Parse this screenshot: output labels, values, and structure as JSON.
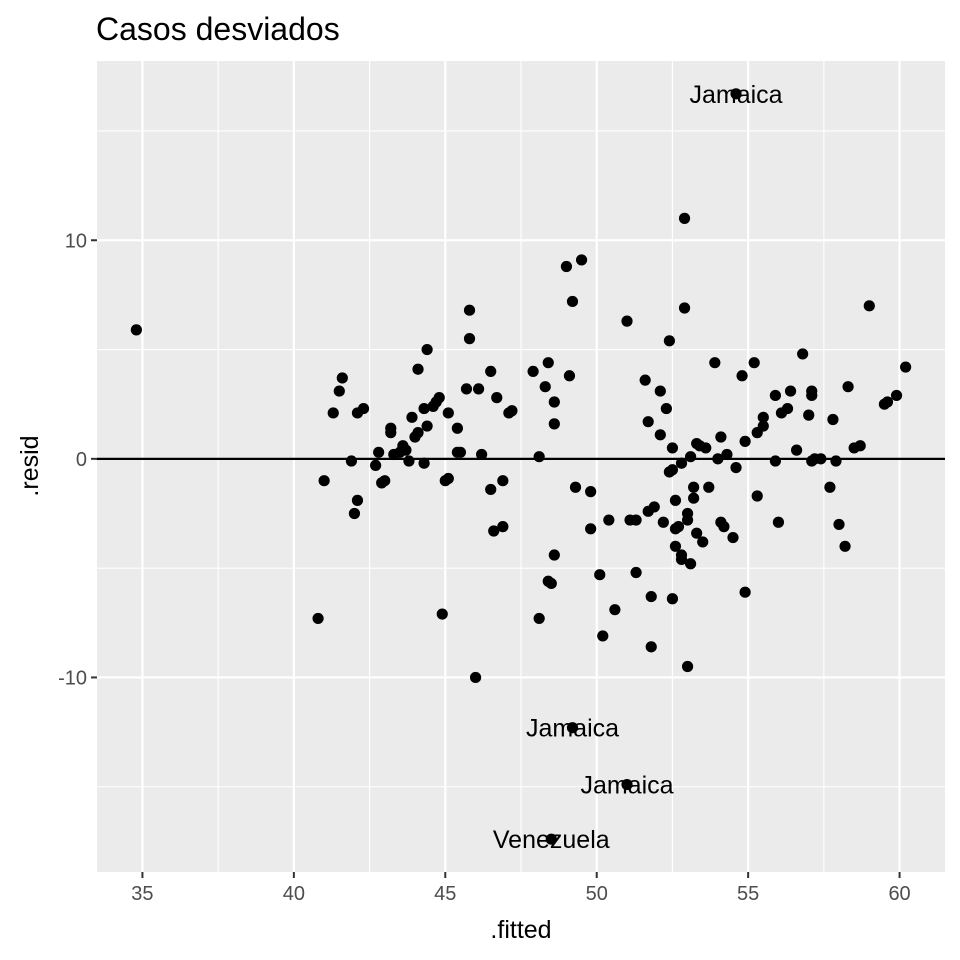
{
  "chart_data": {
    "type": "scatter",
    "title": "Casos desviados",
    "xlabel": ".fitted",
    "ylabel": ".resid",
    "xlim": [
      33.5,
      61.5
    ],
    "ylim": [
      -18.9,
      18.2
    ],
    "xticks": [
      35,
      40,
      45,
      50,
      55,
      60
    ],
    "yticks": [
      -10,
      0,
      10
    ],
    "xtick_labels": [
      "35",
      "40",
      "45",
      "50",
      "55",
      "60"
    ],
    "ytick_labels": [
      "-10",
      "0",
      "10"
    ],
    "grid": true,
    "reference_line": 0,
    "points": [
      [
        34.8,
        5.9
      ],
      [
        40.8,
        -7.3
      ],
      [
        41.0,
        -1.0
      ],
      [
        41.3,
        2.1
      ],
      [
        41.5,
        3.1
      ],
      [
        41.6,
        3.7
      ],
      [
        41.9,
        -0.1
      ],
      [
        42.0,
        -2.5
      ],
      [
        42.1,
        2.1
      ],
      [
        42.1,
        -1.9
      ],
      [
        42.3,
        2.3
      ],
      [
        42.7,
        -0.3
      ],
      [
        42.8,
        0.3
      ],
      [
        42.9,
        -1.1
      ],
      [
        43.0,
        -1.0
      ],
      [
        43.2,
        1.4
      ],
      [
        43.2,
        1.2
      ],
      [
        43.3,
        0.2
      ],
      [
        43.5,
        0.3
      ],
      [
        43.6,
        0.6
      ],
      [
        43.7,
        0.4
      ],
      [
        43.8,
        -0.1
      ],
      [
        43.9,
        1.9
      ],
      [
        44.0,
        1.0
      ],
      [
        44.1,
        1.2
      ],
      [
        44.1,
        4.1
      ],
      [
        44.3,
        -0.2
      ],
      [
        44.3,
        2.3
      ],
      [
        44.4,
        5.0
      ],
      [
        44.4,
        1.5
      ],
      [
        44.6,
        2.4
      ],
      [
        44.7,
        2.6
      ],
      [
        44.8,
        2.8
      ],
      [
        44.9,
        -7.1
      ],
      [
        45.0,
        -1.0
      ],
      [
        45.1,
        -0.9
      ],
      [
        45.1,
        2.1
      ],
      [
        45.4,
        1.4
      ],
      [
        45.4,
        0.3
      ],
      [
        45.5,
        0.3
      ],
      [
        45.7,
        3.2
      ],
      [
        45.8,
        6.8
      ],
      [
        45.8,
        5.5
      ],
      [
        46.0,
        -10.0
      ],
      [
        46.1,
        3.2
      ],
      [
        46.2,
        0.2
      ],
      [
        46.5,
        4.0
      ],
      [
        46.5,
        -1.4
      ],
      [
        46.6,
        -3.3
      ],
      [
        46.7,
        2.8
      ],
      [
        46.9,
        -3.1
      ],
      [
        46.9,
        -1.0
      ],
      [
        47.1,
        2.1
      ],
      [
        47.2,
        2.2
      ],
      [
        47.9,
        4.0
      ],
      [
        48.1,
        0.1
      ],
      [
        48.1,
        -7.3
      ],
      [
        48.3,
        3.3
      ],
      [
        48.4,
        -5.6
      ],
      [
        48.4,
        4.4
      ],
      [
        48.5,
        -5.7
      ],
      [
        48.6,
        -4.4
      ],
      [
        48.6,
        2.6
      ],
      [
        48.6,
        1.6
      ],
      [
        49.0,
        8.8
      ],
      [
        49.1,
        3.8
      ],
      [
        49.2,
        7.2
      ],
      [
        49.3,
        -1.3
      ],
      [
        49.5,
        9.1
      ],
      [
        49.8,
        -1.5
      ],
      [
        49.8,
        -3.2
      ],
      [
        50.1,
        -5.3
      ],
      [
        50.2,
        -8.1
      ],
      [
        50.4,
        -2.8
      ],
      [
        50.6,
        -6.9
      ],
      [
        51.0,
        6.3
      ],
      [
        51.1,
        -2.8
      ],
      [
        51.3,
        -2.8
      ],
      [
        51.3,
        -5.2
      ],
      [
        51.6,
        3.6
      ],
      [
        51.7,
        -2.4
      ],
      [
        51.7,
        1.7
      ],
      [
        51.8,
        -6.3
      ],
      [
        51.8,
        -8.6
      ],
      [
        51.9,
        -2.2
      ],
      [
        52.1,
        3.1
      ],
      [
        52.1,
        1.1
      ],
      [
        52.2,
        -2.9
      ],
      [
        52.3,
        2.3
      ],
      [
        52.4,
        5.4
      ],
      [
        52.4,
        -0.6
      ],
      [
        52.5,
        -0.5
      ],
      [
        52.5,
        0.5
      ],
      [
        52.5,
        -6.4
      ],
      [
        52.6,
        -3.2
      ],
      [
        52.6,
        -4.0
      ],
      [
        52.6,
        -1.9
      ],
      [
        52.7,
        -3.1
      ],
      [
        52.8,
        -4.6
      ],
      [
        52.8,
        -4.4
      ],
      [
        52.8,
        -0.2
      ],
      [
        52.9,
        11.0
      ],
      [
        52.9,
        6.9
      ],
      [
        53.0,
        -2.5
      ],
      [
        53.0,
        -9.5
      ],
      [
        53.0,
        -2.8
      ],
      [
        53.1,
        -4.8
      ],
      [
        53.1,
        0.1
      ],
      [
        53.2,
        -1.8
      ],
      [
        53.2,
        -1.3
      ],
      [
        53.3,
        0.7
      ],
      [
        53.3,
        -3.4
      ],
      [
        53.4,
        0.6
      ],
      [
        53.5,
        -3.8
      ],
      [
        53.6,
        0.5
      ],
      [
        53.7,
        -1.3
      ],
      [
        53.9,
        4.4
      ],
      [
        54.0,
        0.0
      ],
      [
        54.1,
        1.0
      ],
      [
        54.1,
        -2.9
      ],
      [
        54.2,
        -3.1
      ],
      [
        54.3,
        0.2
      ],
      [
        54.5,
        -3.6
      ],
      [
        54.6,
        -0.4
      ],
      [
        54.8,
        3.8
      ],
      [
        54.9,
        0.8
      ],
      [
        54.9,
        -6.1
      ],
      [
        55.2,
        4.4
      ],
      [
        55.3,
        1.2
      ],
      [
        55.3,
        -1.7
      ],
      [
        55.5,
        1.9
      ],
      [
        55.5,
        1.5
      ],
      [
        55.9,
        -0.1
      ],
      [
        55.9,
        2.9
      ],
      [
        56.0,
        -2.9
      ],
      [
        56.1,
        2.1
      ],
      [
        56.3,
        2.3
      ],
      [
        56.4,
        3.1
      ],
      [
        56.6,
        0.4
      ],
      [
        56.8,
        4.8
      ],
      [
        57.0,
        2.0
      ],
      [
        57.1,
        -0.1
      ],
      [
        57.1,
        3.1
      ],
      [
        57.1,
        2.9
      ],
      [
        57.2,
        0.0
      ],
      [
        57.4,
        0.0
      ],
      [
        57.7,
        -1.3
      ],
      [
        57.8,
        1.8
      ],
      [
        57.9,
        -0.1
      ],
      [
        58.0,
        -3.0
      ],
      [
        58.2,
        -4.0
      ],
      [
        58.3,
        3.3
      ],
      [
        58.5,
        0.5
      ],
      [
        58.7,
        0.6
      ],
      [
        59.0,
        7.0
      ],
      [
        59.5,
        2.5
      ],
      [
        59.6,
        2.6
      ],
      [
        59.9,
        2.9
      ],
      [
        60.2,
        4.2
      ],
      [
        54.6,
        16.7
      ],
      [
        49.2,
        -12.3
      ],
      [
        51.0,
        -14.9
      ],
      [
        48.5,
        -17.4
      ]
    ],
    "labeled_points": [
      {
        "label": "Jamaica",
        "x": 54.6,
        "y": 16.7
      },
      {
        "label": "Jamaica",
        "x": 49.2,
        "y": -12.3
      },
      {
        "label": "Jamaica",
        "x": 51.0,
        "y": -14.9
      },
      {
        "label": "Venezuela",
        "x": 48.5,
        "y": -17.4
      }
    ],
    "colors": {
      "panel": "#ebebeb",
      "grid_major": "#ffffff",
      "point": "#000000",
      "reference_line": "#000000"
    }
  }
}
